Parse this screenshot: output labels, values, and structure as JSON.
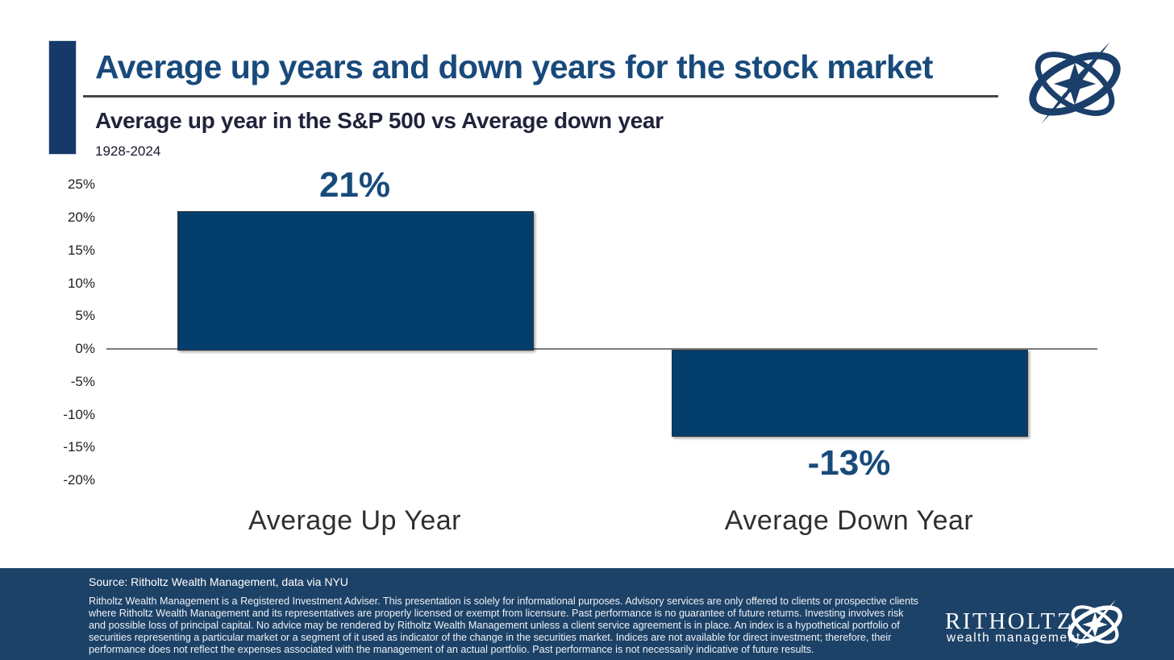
{
  "header": {
    "title": "Average up years and down years for the stock market",
    "subtitle": "Average up year in the S&P 500 vs Average down year",
    "period": "1928-2024"
  },
  "chart_data": {
    "type": "bar",
    "title": "Average up years and down years for the stock market",
    "subtitle": "Average up year in the S&P 500 vs Average down year",
    "period_note": "1928-2024",
    "categories": [
      "Average Up Year",
      "Average Down Year"
    ],
    "values": [
      21,
      -13
    ],
    "value_labels": [
      "21%",
      "-13%"
    ],
    "ylim": [
      -20,
      25
    ],
    "grid": false,
    "legend": "none",
    "yticks": [
      {
        "value": 25,
        "label": "25%"
      },
      {
        "value": 20,
        "label": "20%"
      },
      {
        "value": 15,
        "label": "15%"
      },
      {
        "value": 10,
        "label": "10%"
      },
      {
        "value": 5,
        "label": "5%"
      },
      {
        "value": 0,
        "label": "0%"
      },
      {
        "value": -5,
        "label": "-5%"
      },
      {
        "value": -10,
        "label": "-10%"
      },
      {
        "value": -15,
        "label": "-15%"
      },
      {
        "value": -20,
        "label": "-20%"
      }
    ],
    "bar_color": "#043e6d",
    "source": "Source: Ritholtz Wealth Management, data via NYU"
  },
  "footer": {
    "source": "Source: Ritholtz Wealth Management, data via NYU",
    "disclaimer": "Ritholtz Wealth Management is a Registered Investment Adviser. This presentation is solely for informational purposes. Advisory services are only offered to clients or prospective clients where Ritholtz Wealth Management and its representatives are properly licensed or exempt from licensure. Past performance is no guarantee of future returns. Investing involves risk and possible loss of principal capital. No advice may be rendered by Ritholtz Wealth Management unless a client service agreement is in place. An index is a hypothetical portfolio of securities representing a particular market or a segment of it used as indicator of the change in the securities market. Indices are not available for direct investment; therefore, their performance does not reflect the expenses associated with the management of an actual portfolio. Past performance is not necessarily indicative of future results.",
    "brand_name": "RITHOLTZ",
    "brand_sub": "wealth management"
  },
  "colors": {
    "bar": "#043e6d",
    "title_text": "#184a7b",
    "subtitle_text": "#20233a",
    "footer_bg": "#1d4267",
    "axis_line": "#7a7a7a"
  },
  "icons": {
    "top_logo": "ritholtz-compass-logo",
    "footer_logo": "ritholtz-compass-logo"
  }
}
